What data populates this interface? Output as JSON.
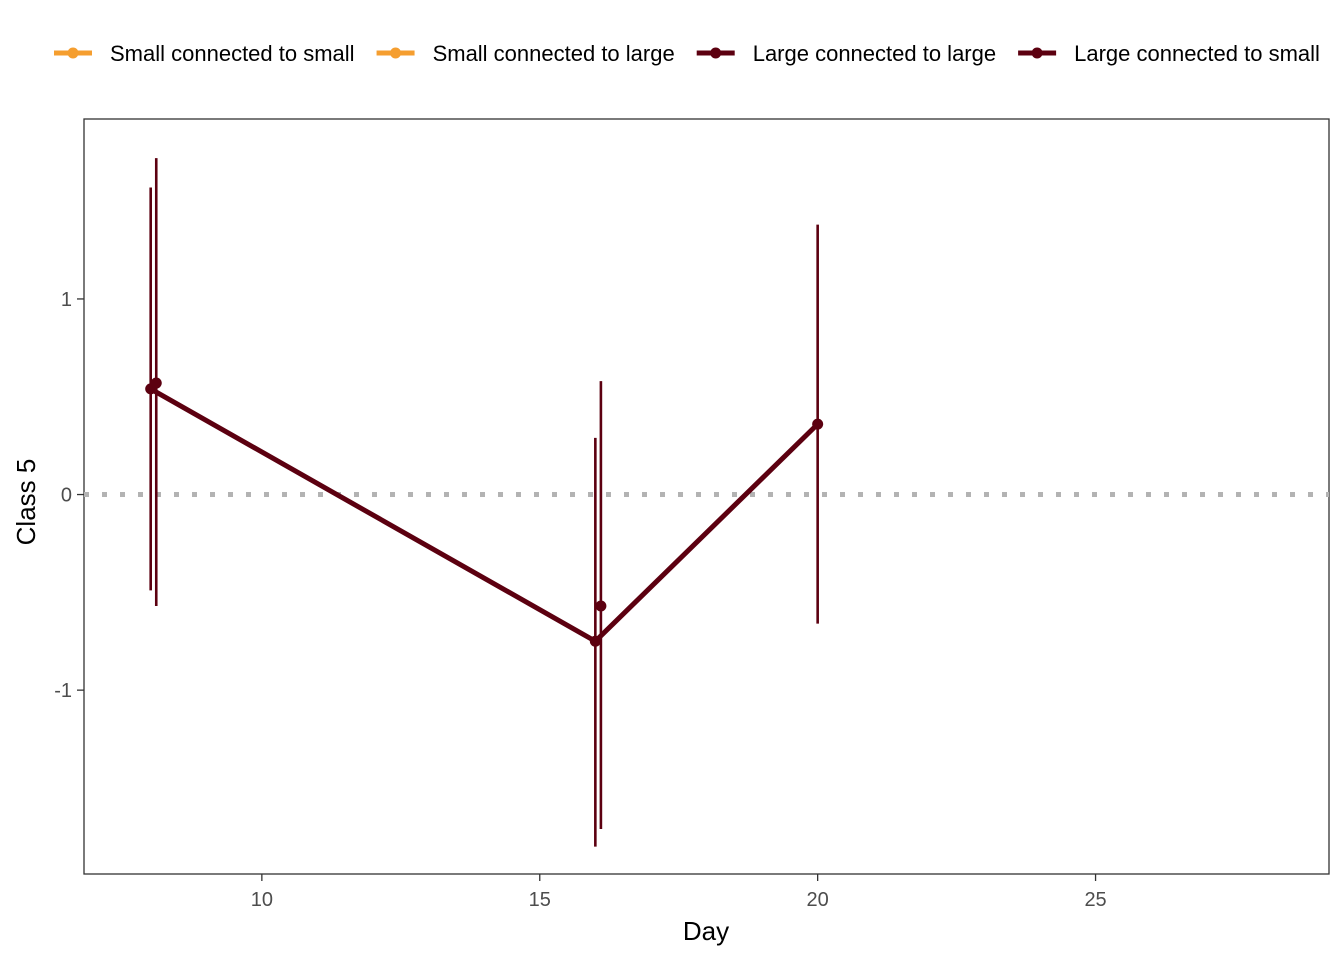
{
  "chart_data": {
    "type": "line",
    "title": "",
    "xlabel": "Day",
    "ylabel": "Class 5",
    "xlim": [
      6.8,
      29.2
    ],
    "ylim": [
      -1.94,
      1.92
    ],
    "x_ticks": [
      10,
      15,
      20,
      25
    ],
    "y_ticks": [
      -1,
      0,
      1
    ],
    "x_tick_labels": [
      "10",
      "15",
      "20",
      "25"
    ],
    "y_tick_labels": [
      "-1",
      "0",
      "1"
    ],
    "reference_line": {
      "y": 0,
      "style": "dotted",
      "color": "#b3b3b3"
    },
    "grid": false,
    "legend": {
      "position": "top",
      "entries": [
        {
          "label": "Small connected to small",
          "color": "#f59e2f"
        },
        {
          "label": "Small connected to large",
          "color": "#f59e2f"
        },
        {
          "label": "Large connected to large",
          "color": "#5c0010"
        },
        {
          "label": "Large connected to small",
          "color": "#5c0010"
        }
      ]
    },
    "series": [
      {
        "name": "Small connected to small",
        "color": "#f59e2f",
        "points": []
      },
      {
        "name": "Small connected to large",
        "color": "#f59e2f",
        "points": []
      },
      {
        "name": "Large connected to large",
        "color": "#5c0010",
        "connect": true,
        "points": [
          {
            "x": 8.0,
            "y": 0.54,
            "lo": -0.49,
            "hi": 1.57
          },
          {
            "x": 16.0,
            "y": -0.75,
            "lo": -1.8,
            "hi": 0.29
          },
          {
            "x": 20.0,
            "y": 0.36,
            "lo": -0.66,
            "hi": 1.38
          }
        ]
      },
      {
        "name": "Large connected to small",
        "color": "#5c0010",
        "connect": false,
        "points": [
          {
            "x": 8.1,
            "y": 0.57,
            "lo": -0.57,
            "hi": 1.72
          },
          {
            "x": 16.1,
            "y": -0.57,
            "lo": -1.71,
            "hi": 0.58
          }
        ]
      }
    ]
  }
}
